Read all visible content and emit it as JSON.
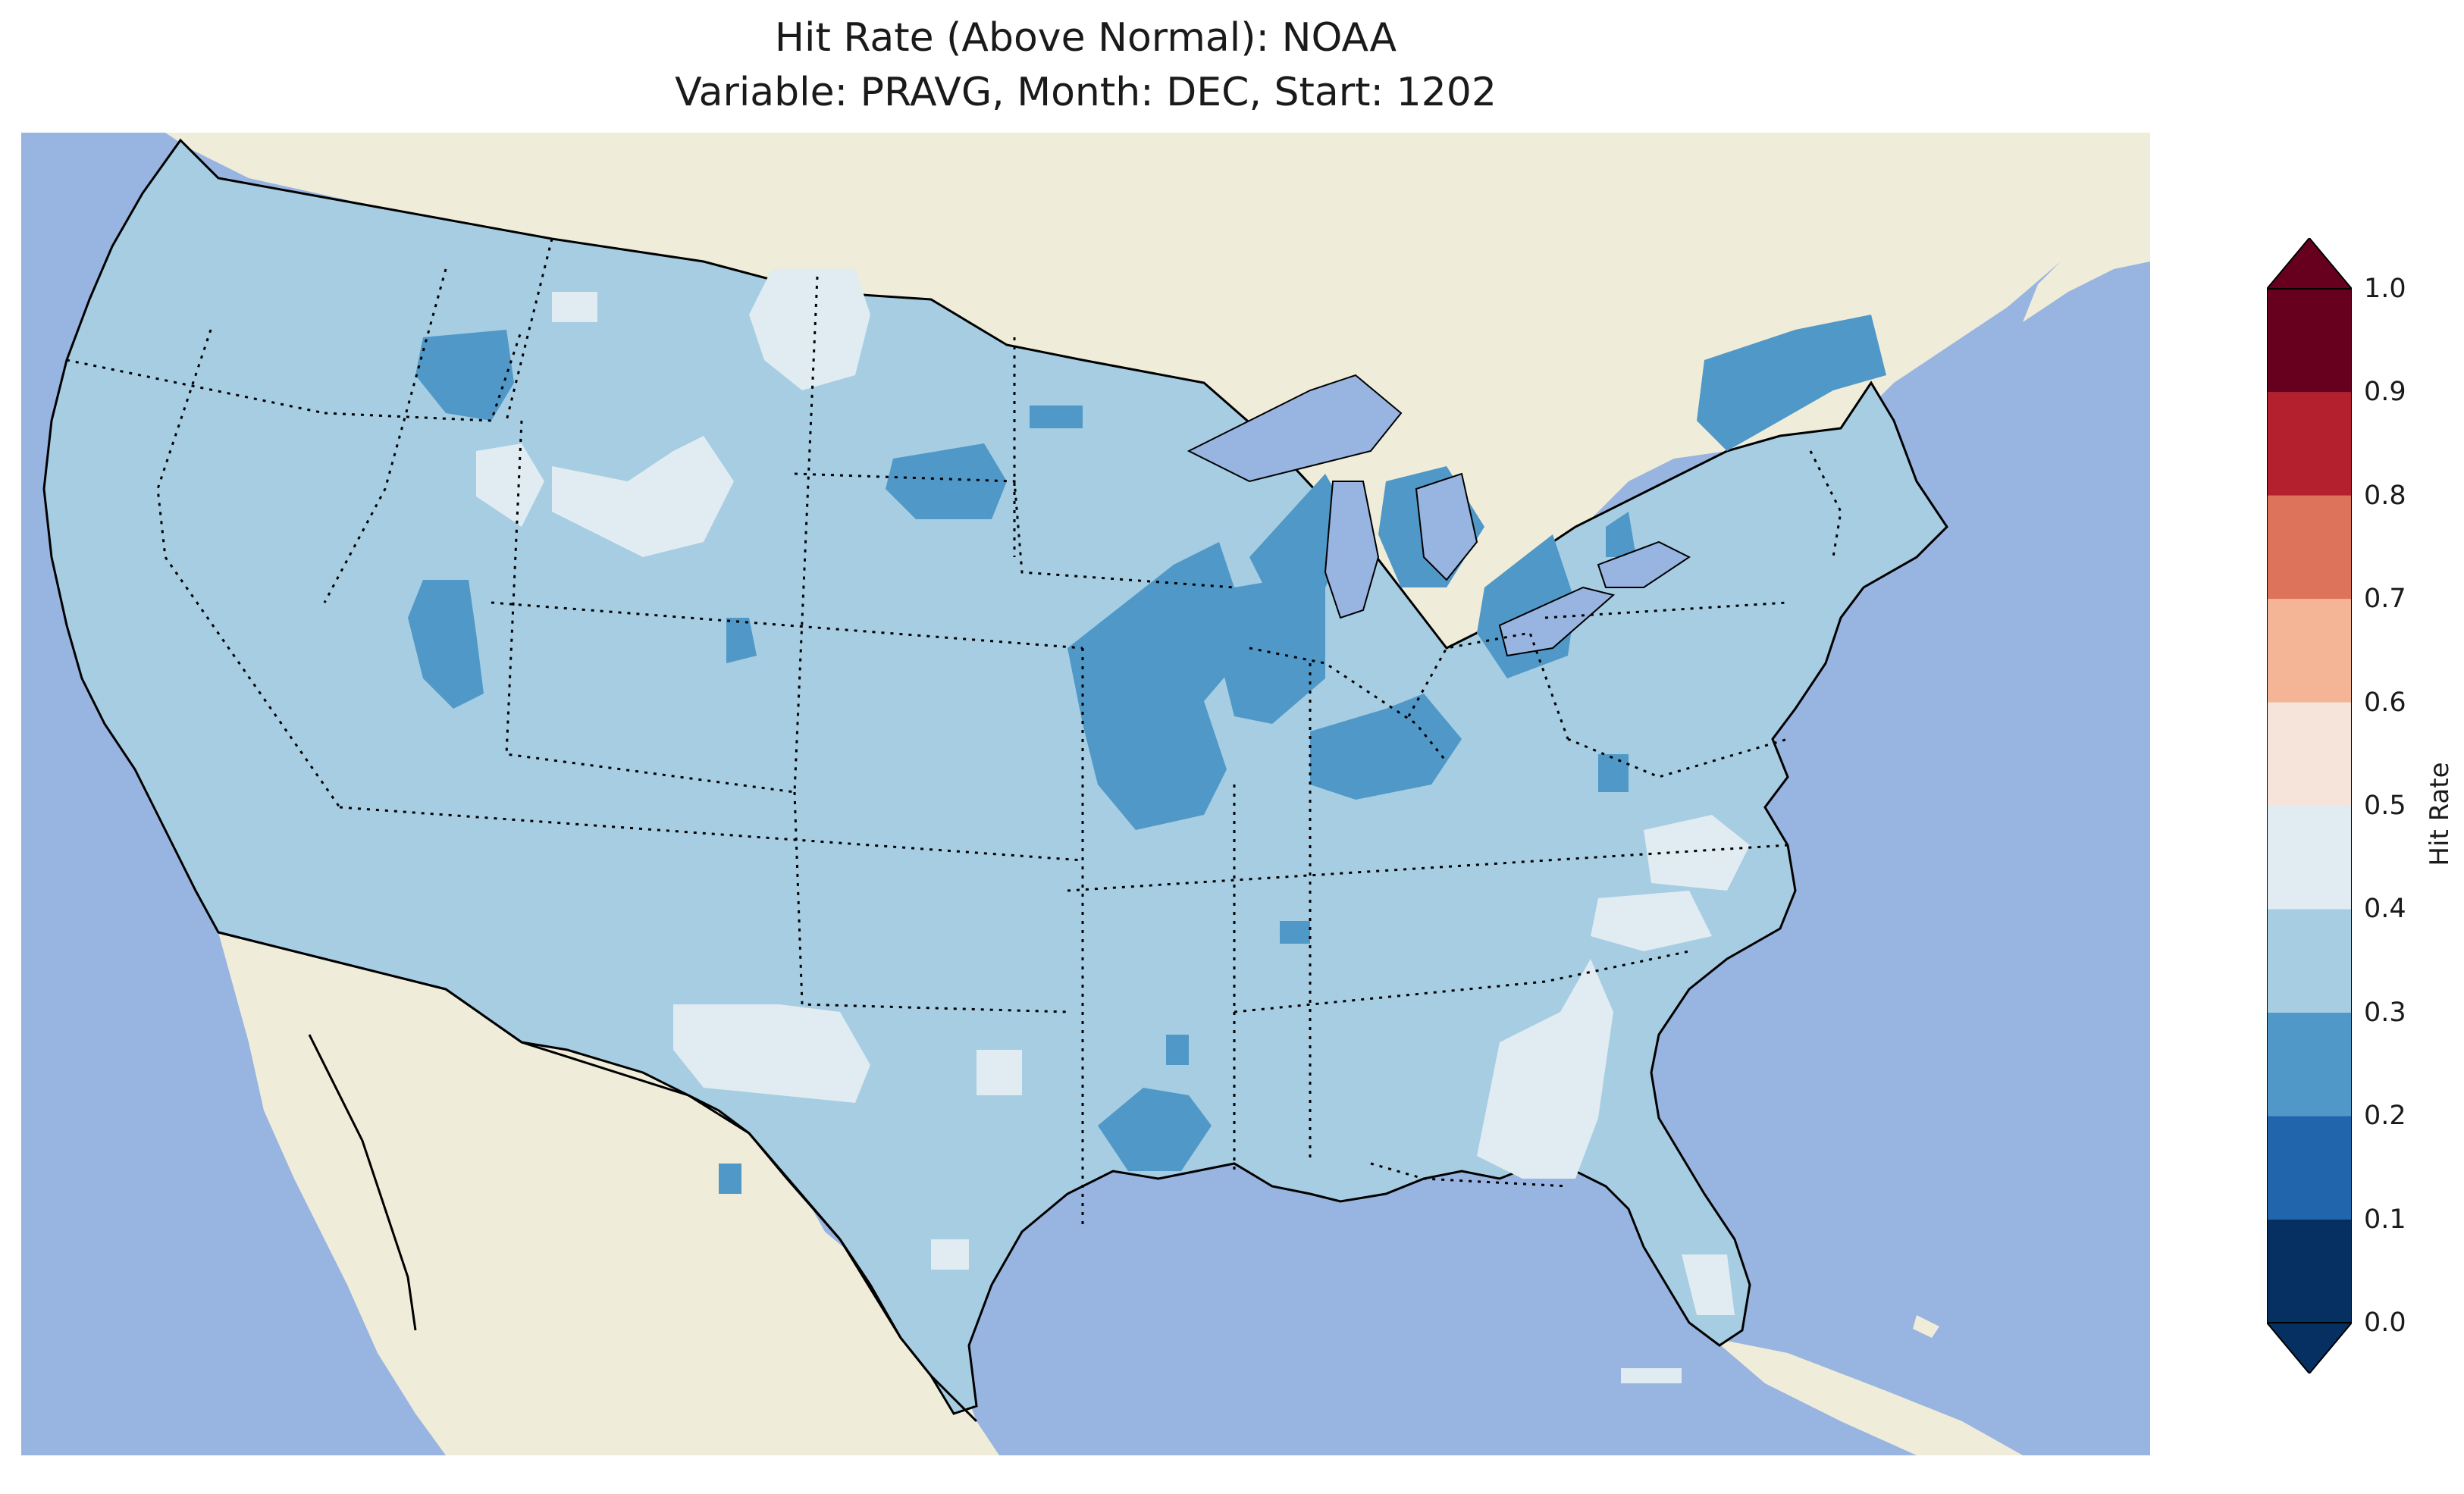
{
  "title": {
    "line1": "Hit Rate (Above Normal): NOAA",
    "line2": "Variable: PRAVG, Month: DEC, Start: 1202"
  },
  "map": {
    "colors": {
      "ocean": "#98b4e0",
      "land": "#efedda",
      "lake": "#98b4e0",
      "frame": "#000000"
    }
  },
  "colorbar": {
    "label": "Hit Rate",
    "ticks": [
      "0.0",
      "0.1",
      "0.2",
      "0.3",
      "0.4",
      "0.5",
      "0.6",
      "0.7",
      "0.8",
      "0.9",
      "1.0"
    ],
    "bins": [
      {
        "range": [
          0.0,
          0.1
        ],
        "color": "#053061"
      },
      {
        "range": [
          0.1,
          0.2
        ],
        "color": "#2166ac"
      },
      {
        "range": [
          0.2,
          0.3
        ],
        "color": "#4f98c7"
      },
      {
        "range": [
          0.3,
          0.4
        ],
        "color": "#a6cde2"
      },
      {
        "range": [
          0.4,
          0.5
        ],
        "color": "#e0ebf2"
      },
      {
        "range": [
          0.5,
          0.6
        ],
        "color": "#f6e4da"
      },
      {
        "range": [
          0.6,
          0.7
        ],
        "color": "#f4b596"
      },
      {
        "range": [
          0.7,
          0.8
        ],
        "color": "#de735c"
      },
      {
        "range": [
          0.8,
          0.9
        ],
        "color": "#b4202e"
      },
      {
        "range": [
          0.9,
          1.0
        ],
        "color": "#67001f"
      }
    ]
  }
}
